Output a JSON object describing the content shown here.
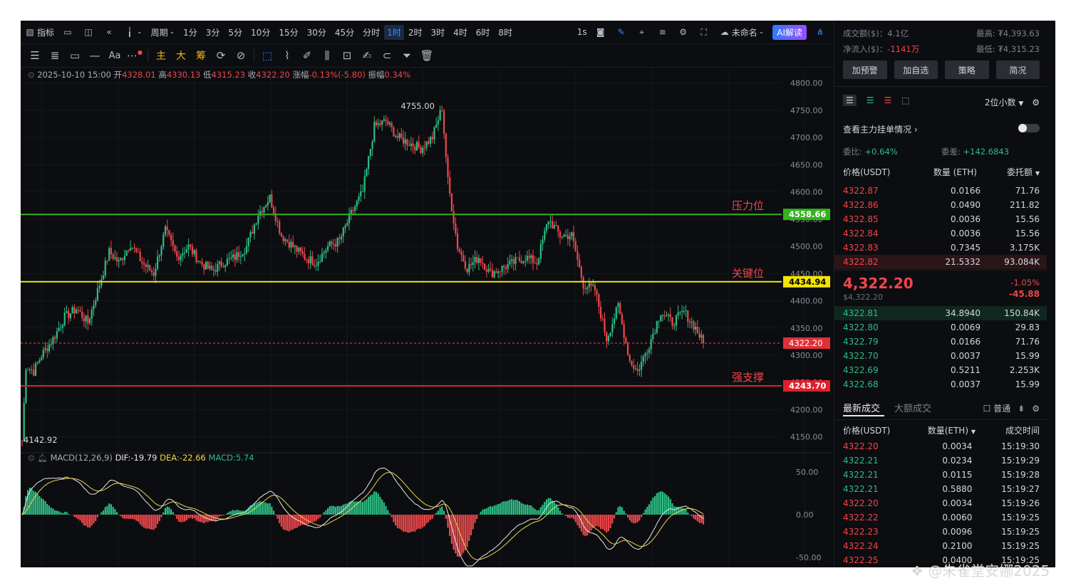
{
  "toolbar": {
    "indicator_label": "指标",
    "period_label": "周期",
    "intervals": [
      "1分",
      "3分",
      "5分",
      "10分",
      "15分",
      "30分",
      "45分",
      "分时",
      "1时",
      "2时",
      "3时",
      "4时",
      "6时",
      "8时"
    ],
    "active_interval": "1时",
    "seconds_label": "1s",
    "layout_name": "未命名",
    "ai_label": "AI解读",
    "tools_row": [
      "主",
      "大",
      "筹"
    ]
  },
  "info": {
    "datetime": "2025-10-10 15:00",
    "open_label": "开",
    "open": "4328.01",
    "high_label": "高",
    "high": "4330.13",
    "low_label": "低",
    "low": "4315.23",
    "close_label": "收",
    "close": "4322.20",
    "change_label": "涨幅",
    "change": "-0.13%(-5.80)",
    "amp_label": "振幅",
    "amp": "0.34%"
  },
  "macd": {
    "label": "MACD(12,26,9)",
    "dif": "DIF:-19.79",
    "dea": "DEA:-22.66",
    "macd": "MACD:5.74"
  },
  "levels": {
    "resistance_label": "压力位",
    "resistance": "4558.66",
    "key_label": "关键位",
    "key": "4434.94",
    "current": "4322.20",
    "support_label": "强支撑",
    "support": "4243.70"
  },
  "chart_data": {
    "type": "candlestick",
    "ylim": [
      4130,
      4810
    ],
    "y_ticks": [
      "4800.00",
      "4750.00",
      "4700.00",
      "4650.00",
      "4600.00",
      "4550.00",
      "4500.00",
      "4450.00",
      "4400.00",
      "4350.00",
      "4300.00",
      "4250.00",
      "4200.00",
      "4150.00"
    ],
    "y_tick_values": [
      4800,
      4750,
      4700,
      4650,
      4600,
      4550,
      4500,
      4450,
      4400,
      4350,
      4300,
      4250,
      4200,
      4150
    ],
    "max_label": "4755.00",
    "min_label": "4142.92",
    "macd_ticks": [
      "50.00",
      "0.00",
      "-50.00"
    ],
    "macd_tick_values": [
      50,
      0,
      -50
    ],
    "macd_ylim": [
      -60,
      60
    ],
    "anchors": [
      [
        0,
        4142
      ],
      [
        2,
        4280
      ],
      [
        6,
        4270
      ],
      [
        10,
        4300
      ],
      [
        16,
        4330
      ],
      [
        22,
        4370
      ],
      [
        28,
        4385
      ],
      [
        34,
        4360
      ],
      [
        40,
        4430
      ],
      [
        45,
        4490
      ],
      [
        50,
        4470
      ],
      [
        56,
        4505
      ],
      [
        62,
        4470
      ],
      [
        68,
        4450
      ],
      [
        74,
        4530
      ],
      [
        80,
        4480
      ],
      [
        86,
        4500
      ],
      [
        92,
        4470
      ],
      [
        98,
        4455
      ],
      [
        104,
        4470
      ],
      [
        110,
        4480
      ],
      [
        116,
        4500
      ],
      [
        122,
        4560
      ],
      [
        128,
        4590
      ],
      [
        134,
        4520
      ],
      [
        140,
        4500
      ],
      [
        146,
        4480
      ],
      [
        152,
        4470
      ],
      [
        158,
        4500
      ],
      [
        164,
        4510
      ],
      [
        170,
        4560
      ],
      [
        176,
        4600
      ],
      [
        182,
        4720
      ],
      [
        188,
        4730
      ],
      [
        194,
        4700
      ],
      [
        200,
        4690
      ],
      [
        206,
        4680
      ],
      [
        212,
        4700
      ],
      [
        217,
        4755
      ],
      [
        220,
        4620
      ],
      [
        225,
        4500
      ],
      [
        230,
        4460
      ],
      [
        236,
        4480
      ],
      [
        242,
        4450
      ],
      [
        248,
        4460
      ],
      [
        254,
        4470
      ],
      [
        260,
        4480
      ],
      [
        266,
        4470
      ],
      [
        272,
        4550
      ],
      [
        278,
        4520
      ],
      [
        284,
        4520
      ],
      [
        290,
        4430
      ],
      [
        296,
        4420
      ],
      [
        302,
        4330
      ],
      [
        308,
        4390
      ],
      [
        314,
        4290
      ],
      [
        318,
        4270
      ],
      [
        324,
        4320
      ],
      [
        330,
        4380
      ],
      [
        336,
        4360
      ],
      [
        342,
        4380
      ],
      [
        348,
        4350
      ],
      [
        352,
        4322.2
      ]
    ]
  },
  "panel": {
    "turnover_label": "成交额($)：",
    "turnover": "4.1亿",
    "high_label": "最高:",
    "high": "₮4,393.63",
    "netflow_label": "净流入($)：",
    "netflow": "-1141万",
    "low_label": "最低:",
    "low": "₮4,315.23",
    "buttons": [
      "加预警",
      "加自选",
      "策略",
      "简况"
    ],
    "precision": "2位小数",
    "big_order_label": "查看主力挂单情况",
    "ratio_label": "委比:",
    "ratio": "+0.64%",
    "diff_label": "委差:",
    "diff": "+142.6843",
    "ob_headers": [
      "价格(USDT)",
      "数量 (ETH)",
      "委托额"
    ],
    "asks": [
      {
        "price": "4322.87",
        "qty": "0.0166",
        "amt": "71.76"
      },
      {
        "price": "4322.86",
        "qty": "0.0490",
        "amt": "211.82"
      },
      {
        "price": "4322.85",
        "qty": "0.0036",
        "amt": "15.56"
      },
      {
        "price": "4322.84",
        "qty": "0.0036",
        "amt": "15.56"
      },
      {
        "price": "4322.83",
        "qty": "0.7345",
        "amt": "3.175K"
      },
      {
        "price": "4322.82",
        "qty": "21.5332",
        "amt": "93.084K"
      }
    ],
    "last_price": "4,322.20",
    "last_usd": "$4,322.20",
    "last_pct": "-1.05%",
    "last_chg": "-45.88",
    "bids": [
      {
        "price": "4322.81",
        "qty": "34.8940",
        "amt": "150.84K"
      },
      {
        "price": "4322.80",
        "qty": "0.0069",
        "amt": "29.83"
      },
      {
        "price": "4322.79",
        "qty": "0.0166",
        "amt": "71.76"
      },
      {
        "price": "4322.70",
        "qty": "0.0037",
        "amt": "15.99"
      },
      {
        "price": "4322.69",
        "qty": "0.5211",
        "amt": "2.253K"
      },
      {
        "price": "4322.68",
        "qty": "0.0037",
        "amt": "15.99"
      }
    ],
    "trades_tab1": "最新成交",
    "trades_tab2": "大额成交",
    "normal_label": "普通",
    "tr_headers": [
      "价格(USDT)",
      "数量(ETH)",
      "成交时间"
    ],
    "trades": [
      {
        "price": "4322.20",
        "qty": "0.0034",
        "time": "15:19:30",
        "side": "sell"
      },
      {
        "price": "4322.21",
        "qty": "0.0234",
        "time": "15:19:29",
        "side": "buy"
      },
      {
        "price": "4322.21",
        "qty": "0.0115",
        "time": "15:19:28",
        "side": "buy"
      },
      {
        "price": "4322.21",
        "qty": "0.5880",
        "time": "15:19:27",
        "side": "buy"
      },
      {
        "price": "4322.20",
        "qty": "0.0034",
        "time": "15:19:26",
        "side": "sell"
      },
      {
        "price": "4322.22",
        "qty": "0.0060",
        "time": "15:19:25",
        "side": "sell"
      },
      {
        "price": "4322.23",
        "qty": "0.0096",
        "time": "15:19:25",
        "side": "sell"
      },
      {
        "price": "4322.24",
        "qty": "0.2100",
        "time": "15:19:25",
        "side": "sell"
      },
      {
        "price": "4322.25",
        "qty": "0.0400",
        "time": "15:19:25",
        "side": "sell"
      }
    ]
  },
  "watermark": "@朱雀堂安娜2025"
}
